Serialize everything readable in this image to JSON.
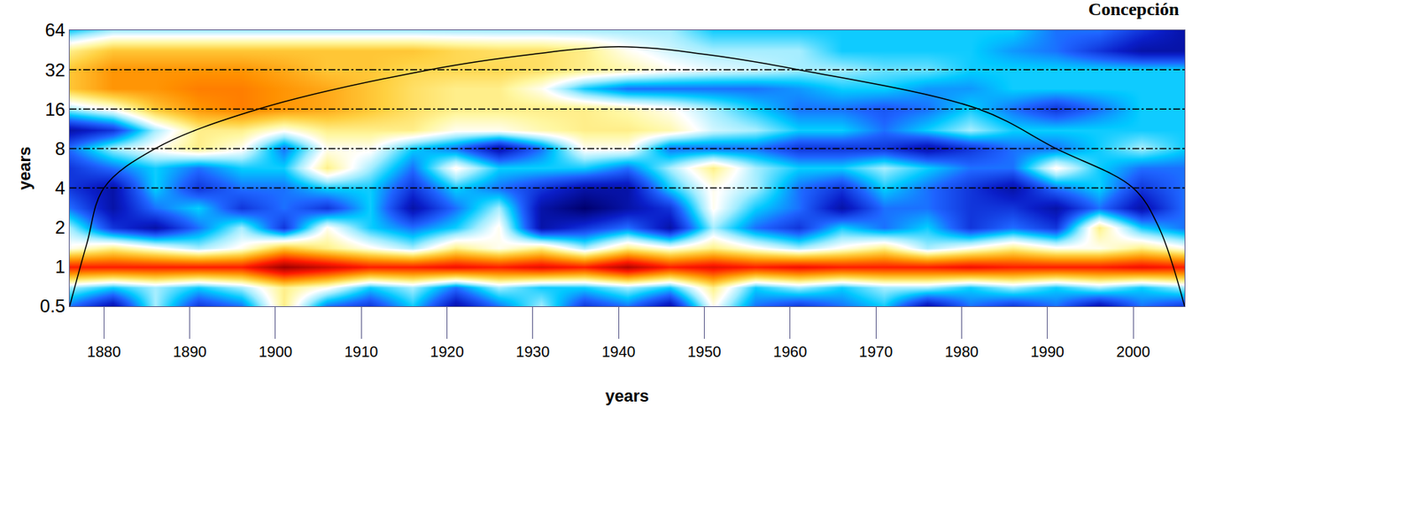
{
  "chart_data": {
    "type": "heatmap",
    "title": "Concepción",
    "x_label": "years",
    "y_label": "years",
    "log": "y",
    "xlim": [
      1876,
      2006
    ],
    "xticks": [
      1880,
      1890,
      1900,
      1910,
      1920,
      1930,
      1940,
      1950,
      1960,
      1970,
      1980,
      1990,
      2000
    ],
    "ylim": [
      0.5,
      64
    ],
    "yticks": [
      0.5,
      1,
      2,
      4,
      8,
      16,
      32,
      64
    ],
    "x": [
      1876,
      1881,
      1886,
      1891,
      1896,
      1901,
      1906,
      1911,
      1916,
      1921,
      1926,
      1931,
      1936,
      1941,
      1946,
      1951,
      1956,
      1961,
      1966,
      1971,
      1976,
      1981,
      1986,
      1991,
      1996,
      2001,
      2006
    ],
    "y": [
      0.5,
      0.7,
      1,
      1.4,
      2,
      2.8,
      4,
      5.7,
      8,
      11,
      16,
      23,
      32,
      45,
      64
    ],
    "cells": [
      [
        2,
        1,
        3,
        1.5,
        2,
        4,
        2,
        1.5,
        2.5,
        1,
        2,
        3,
        1.5,
        2,
        1,
        3.5,
        2,
        1.5,
        2,
        2.5,
        1,
        2,
        1.5,
        2,
        1,
        2,
        1.5
      ],
      [
        3,
        2.5,
        3,
        2.5,
        3,
        4,
        3.5,
        2.5,
        3,
        2,
        3,
        2.5,
        2.5,
        3,
        2.5,
        4,
        2.5,
        3,
        2.5,
        3,
        3,
        2.5,
        3,
        2.5,
        3,
        2.5,
        3
      ],
      [
        6,
        6,
        6,
        6,
        6,
        7,
        6.5,
        6,
        6,
        6.2,
        6,
        6.3,
        6,
        6.8,
        6,
        6.3,
        6,
        6.2,
        6,
        6,
        6,
        6.2,
        6,
        6,
        6,
        6.2,
        6
      ],
      [
        3.5,
        4,
        3.5,
        3,
        3.5,
        4.5,
        4,
        3.5,
        3,
        4,
        3.5,
        4,
        3,
        4,
        3.5,
        4,
        3.5,
        3,
        3.5,
        4,
        3,
        3.5,
        4,
        3.5,
        3.5,
        4,
        3.5
      ],
      [
        3,
        1.5,
        1,
        2,
        3,
        1.5,
        3.5,
        2.5,
        2,
        2.5,
        3.5,
        1,
        1.5,
        2,
        1,
        3,
        2,
        1.5,
        2.5,
        2,
        2.5,
        1.5,
        2,
        1.5,
        4,
        2.5,
        2
      ],
      [
        2,
        1,
        2,
        2.5,
        1.5,
        2,
        1.5,
        2.5,
        1,
        2,
        3,
        1,
        0.5,
        1,
        1.5,
        3.5,
        2.5,
        2,
        1,
        2,
        2,
        1.5,
        1.5,
        1,
        2,
        1,
        2
      ],
      [
        1.5,
        1,
        2.5,
        1.5,
        2,
        2,
        2.5,
        2.5,
        1.5,
        2.5,
        2,
        1.5,
        1,
        1,
        2.5,
        3.5,
        3,
        2,
        1.5,
        2.5,
        2,
        1.5,
        1,
        2,
        2.5,
        1.5,
        2
      ],
      [
        1.5,
        2,
        2.5,
        2,
        2.5,
        2.5,
        4,
        3,
        2,
        3.5,
        2.5,
        2.5,
        2.5,
        2,
        3,
        4,
        3,
        2.5,
        2.5,
        3,
        2.5,
        2,
        2,
        3.5,
        2.5,
        2,
        2
      ],
      [
        2,
        3,
        3.5,
        4,
        3.5,
        2,
        3.5,
        3.5,
        2.5,
        2,
        1,
        2,
        3.5,
        3.5,
        2,
        2,
        2,
        1.5,
        1.5,
        1.5,
        1,
        1.5,
        2,
        2,
        2.5,
        3,
        2.5
      ],
      [
        1,
        1.5,
        3,
        4,
        4,
        3.5,
        4,
        4,
        4,
        3.5,
        3.5,
        3.8,
        4,
        4,
        3.8,
        3.2,
        3,
        2.5,
        2.5,
        2,
        2.5,
        3,
        2.5,
        2.5,
        2.5,
        2.5,
        2.5
      ],
      [
        3,
        3.5,
        4.5,
        5,
        5.2,
        5,
        4.8,
        4.5,
        4.2,
        4,
        4,
        4,
        4,
        3.8,
        3.5,
        3,
        2.5,
        2,
        2,
        1.8,
        2,
        2.5,
        2,
        1.5,
        2,
        2.5,
        2.5
      ],
      [
        4.5,
        5,
        5,
        5.2,
        5.2,
        5,
        4.8,
        4.5,
        4.2,
        4,
        4,
        3.5,
        2.5,
        2,
        2,
        2,
        2,
        2.2,
        2.5,
        2.5,
        2.2,
        2.2,
        2.5,
        2.5,
        2.5,
        2.5,
        2.5
      ],
      [
        4.5,
        5,
        5,
        5,
        5,
        4.8,
        4.5,
        4.5,
        4.3,
        4.3,
        4.3,
        4.2,
        4,
        3.8,
        3.5,
        3.3,
        3.2,
        3,
        3,
        2.8,
        2.8,
        2.5,
        2.5,
        2.5,
        2.5,
        2.5,
        2.5
      ],
      [
        4,
        4.5,
        4.5,
        4.5,
        4.5,
        4.5,
        4.5,
        4.5,
        4.5,
        4.3,
        4.2,
        4.2,
        4,
        3.5,
        3.2,
        3,
        3,
        3,
        2.5,
        2.5,
        2.5,
        2.5,
        2.2,
        2,
        1.5,
        1,
        1
      ],
      [
        2.5,
        3,
        3,
        3,
        3,
        3,
        3,
        3,
        3,
        3,
        3,
        3,
        3,
        3,
        3,
        2.5,
        2.5,
        2.5,
        2.5,
        2.5,
        2.5,
        2.5,
        2.5,
        2,
        2,
        1.5,
        1
      ]
    ],
    "cone_of_influence": {
      "x": [
        1876,
        1878,
        1880,
        1886,
        1898,
        1918,
        1930,
        1940,
        1950,
        1961,
        1982,
        1991,
        2000,
        2003,
        2006
      ],
      "y": [
        0.5,
        1.5,
        4,
        8,
        16,
        32,
        42,
        48,
        42,
        32,
        16,
        8,
        4,
        2,
        0.5
      ]
    },
    "reference_lines": [
      4,
      8,
      16,
      32
    ]
  }
}
